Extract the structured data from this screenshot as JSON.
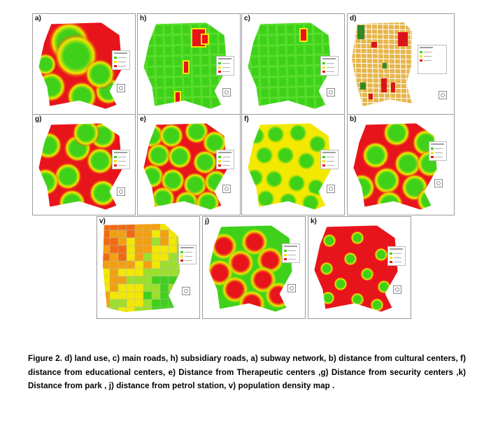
{
  "figure": {
    "panels": [
      {
        "id": "a",
        "label": "a)"
      },
      {
        "id": "h",
        "label": "h)"
      },
      {
        "id": "c",
        "label": "c)"
      },
      {
        "id": "d",
        "label": "d)"
      },
      {
        "id": "g",
        "label": "g)"
      },
      {
        "id": "e",
        "label": "e)"
      },
      {
        "id": "f",
        "label": "f)"
      },
      {
        "id": "b",
        "label": "b)"
      },
      {
        "id": "v",
        "label": "v)"
      },
      {
        "id": "j",
        "label": "j)"
      },
      {
        "id": "k",
        "label": "k)"
      }
    ],
    "colors": {
      "high": "#e8141c",
      "mid": "#f2e800",
      "low": "#3fd11a",
      "landuse_base": "#e6b54a",
      "landuse_street": "#ffffff",
      "landuse_green": "#2f8a2a",
      "landuse_red": "#d9141c"
    }
  },
  "caption": {
    "text": "Figure 2. d) land use, c) main roads, h) subsidiary roads, a) subway network, b) distance from cultural centers, f) distance from educational centers, e) Distance from Therapeutic centers ,g) Distance from security centers ,k) Distance from park , j) distance from petrol station, v) population density map ."
  }
}
